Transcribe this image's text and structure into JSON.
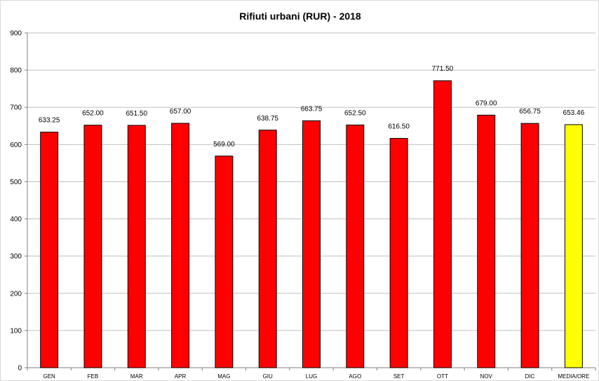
{
  "chart_data": {
    "type": "bar",
    "title": "Rifiuti urbani (RUR) - 2018",
    "xlabel": "",
    "ylabel": "",
    "ylim": [
      0,
      900
    ],
    "yticks": [
      0,
      100,
      200,
      300,
      400,
      500,
      600,
      700,
      800,
      900
    ],
    "ytick_labels": [
      "0",
      "100",
      "200",
      "300",
      "400",
      "500",
      "600",
      "700",
      "800",
      "900"
    ],
    "grid": true,
    "legend": false,
    "categories": [
      "GEN",
      "FEB",
      "MAR",
      "APR",
      "MAG",
      "GIU",
      "LUG",
      "AGO",
      "SET",
      "OTT",
      "NOV",
      "DIC",
      "MEDIA/ORE"
    ],
    "values": [
      633.25,
      652.0,
      651.5,
      657.0,
      569.0,
      638.75,
      663.75,
      652.5,
      616.5,
      771.5,
      679.0,
      656.75,
      653.46
    ],
    "data_labels": [
      "633.25",
      "652.00",
      "651.50",
      "657.00",
      "569.00",
      "638.75",
      "663.75",
      "652.50",
      "616.50",
      "771.50",
      "679.00",
      "656.75",
      "653.46"
    ],
    "bar_colors": [
      "#ff0000",
      "#ff0000",
      "#ff0000",
      "#ff0000",
      "#ff0000",
      "#ff0000",
      "#ff0000",
      "#ff0000",
      "#ff0000",
      "#ff0000",
      "#ff0000",
      "#ff0000",
      "#ffff00"
    ]
  }
}
